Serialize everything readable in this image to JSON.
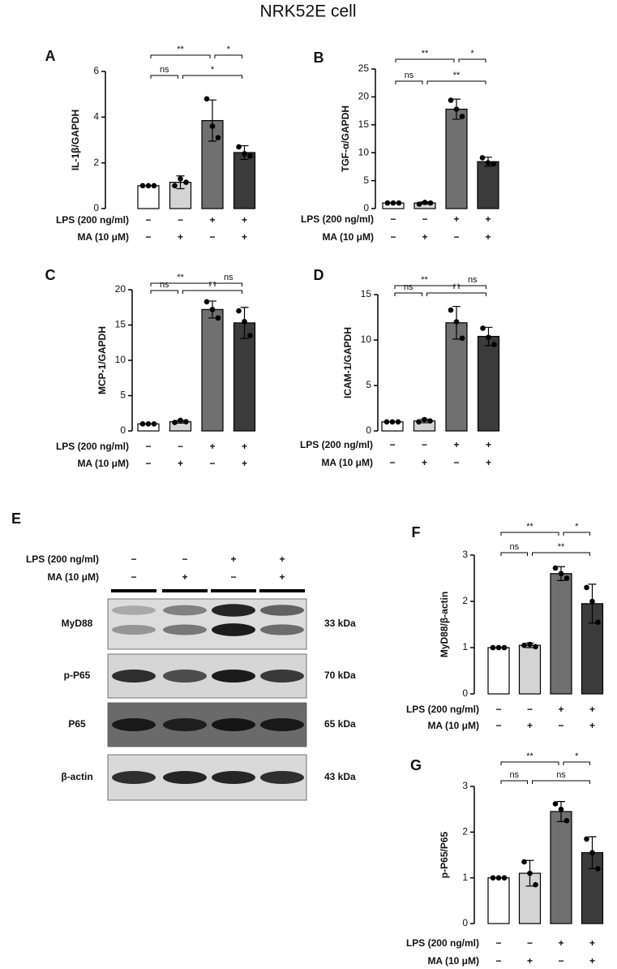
{
  "title": "NRK52E cell",
  "chart_data": [
    {
      "type": "bar",
      "panel": "A",
      "ylabel": "IL-1β/GAPDH",
      "ylim": [
        0,
        6
      ],
      "yticks": [
        0,
        2,
        4,
        6
      ],
      "colors": [
        "#ffffff",
        "#d4d4d4",
        "#707070",
        "#3b3b3b"
      ],
      "values": [
        1.0,
        1.15,
        3.85,
        2.45
      ],
      "errors": [
        0,
        0.28,
        0.9,
        0.3
      ],
      "points": [
        [
          1.0,
          1.0,
          1.0
        ],
        [
          1.0,
          1.3,
          1.15
        ],
        [
          4.8,
          3.6,
          3.1
        ],
        [
          2.7,
          2.4,
          2.3
        ]
      ],
      "comparisons": [
        "**",
        "*",
        "ns",
        "*"
      ],
      "conditions": [
        {
          "name": "LPS (200 ng/ml)",
          "signs": [
            "−",
            "−",
            "+",
            "+"
          ]
        },
        {
          "name": "MA (10 μM)",
          "signs": [
            "−",
            "+",
            "−",
            "+"
          ]
        }
      ]
    },
    {
      "type": "bar",
      "panel": "B",
      "ylabel": "TGF-α/GAPDH",
      "ylim": [
        0,
        25
      ],
      "yticks": [
        0,
        5,
        10,
        15,
        20,
        25
      ],
      "colors": [
        "#ffffff",
        "#d4d4d4",
        "#707070",
        "#3b3b3b"
      ],
      "values": [
        1.0,
        1.0,
        17.8,
        8.4
      ],
      "errors": [
        0,
        0.2,
        1.8,
        0.8
      ],
      "points": [
        [
          1.0,
          1.0,
          1.0
        ],
        [
          0.8,
          1.1,
          1.0
        ],
        [
          19.4,
          17.8,
          16.5
        ],
        [
          9.1,
          8.2,
          8.0
        ]
      ],
      "comparisons": [
        "**",
        "*",
        "ns",
        "**"
      ],
      "conditions": [
        {
          "name": "LPS (200 ng/ml)",
          "signs": [
            "−",
            "−",
            "+",
            "+"
          ]
        },
        {
          "name": "MA (10 μM)",
          "signs": [
            "−",
            "+",
            "−",
            "+"
          ]
        }
      ]
    },
    {
      "type": "bar",
      "panel": "C",
      "ylabel": "MCP-1/GAPDH",
      "ylim": [
        0,
        20
      ],
      "yticks": [
        0,
        5,
        10,
        15,
        20
      ],
      "colors": [
        "#ffffff",
        "#d4d4d4",
        "#707070",
        "#3b3b3b"
      ],
      "values": [
        1.0,
        1.3,
        17.2,
        15.3
      ],
      "errors": [
        0,
        0.2,
        1.2,
        2.2
      ],
      "points": [
        [
          1.0,
          1.0,
          1.0
        ],
        [
          1.2,
          1.5,
          1.3
        ],
        [
          18.3,
          17.2,
          16.0
        ],
        [
          17.0,
          15.5,
          13.5
        ]
      ],
      "comparisons": [
        "**",
        "ns",
        "ns",
        "**"
      ],
      "conditions": [
        {
          "name": "LPS (200 ng/ml)",
          "signs": [
            "−",
            "−",
            "+",
            "+"
          ]
        },
        {
          "name": "MA (10 μM)",
          "signs": [
            "−",
            "+",
            "−",
            "+"
          ]
        }
      ]
    },
    {
      "type": "bar",
      "panel": "D",
      "ylabel": "ICAM-1/GAPDH",
      "ylim": [
        0,
        15
      ],
      "yticks": [
        0,
        5,
        10,
        15
      ],
      "colors": [
        "#ffffff",
        "#d4d4d4",
        "#707070",
        "#3b3b3b"
      ],
      "values": [
        1.0,
        1.1,
        11.9,
        10.4
      ],
      "errors": [
        0,
        0.2,
        1.8,
        1.0
      ],
      "points": [
        [
          1.0,
          1.0,
          1.0
        ],
        [
          1.0,
          1.25,
          1.1
        ],
        [
          13.3,
          12.0,
          10.2
        ],
        [
          11.3,
          10.3,
          9.5
        ]
      ],
      "comparisons": [
        "**",
        "ns",
        "ns",
        "**"
      ],
      "conditions": [
        {
          "name": "LPS (200 ng/ml)",
          "signs": [
            "−",
            "−",
            "+",
            "+"
          ]
        },
        {
          "name": "MA (10 μM)",
          "signs": [
            "−",
            "+",
            "−",
            "+"
          ]
        }
      ]
    },
    {
      "type": "bar",
      "panel": "F",
      "ylabel": "MyD88/β-actin",
      "ylim": [
        0,
        3
      ],
      "yticks": [
        0,
        1,
        2,
        3
      ],
      "colors": [
        "#ffffff",
        "#d4d4d4",
        "#707070",
        "#3b3b3b"
      ],
      "values": [
        1.0,
        1.05,
        2.6,
        1.95
      ],
      "errors": [
        0,
        0.05,
        0.15,
        0.42
      ],
      "points": [
        [
          1.0,
          1.0,
          1.0
        ],
        [
          1.05,
          1.07,
          1.02
        ],
        [
          2.72,
          2.6,
          2.5
        ],
        [
          2.3,
          2.0,
          1.55
        ]
      ],
      "comparisons": [
        "**",
        "*",
        "ns",
        "**"
      ],
      "conditions": [
        {
          "name": "LPS (200 ng/ml)",
          "signs": [
            "−",
            "−",
            "+",
            "+"
          ]
        },
        {
          "name": "MA (10 μM)",
          "signs": [
            "−",
            "+",
            "−",
            "+"
          ]
        }
      ]
    },
    {
      "type": "bar",
      "panel": "G",
      "ylabel": "p-P65/P65",
      "ylim": [
        0,
        3
      ],
      "yticks": [
        0,
        1,
        2,
        3
      ],
      "colors": [
        "#ffffff",
        "#d4d4d4",
        "#707070",
        "#3b3b3b"
      ],
      "values": [
        1.0,
        1.1,
        2.45,
        1.55
      ],
      "errors": [
        0,
        0.28,
        0.22,
        0.35
      ],
      "points": [
        [
          1.0,
          1.0,
          1.0
        ],
        [
          1.35,
          1.1,
          0.85
        ],
        [
          2.62,
          2.5,
          2.25
        ],
        [
          1.85,
          1.55,
          1.2
        ]
      ],
      "comparisons": [
        "**",
        "*",
        "ns",
        "ns"
      ],
      "conditions": [
        {
          "name": "LPS (200 ng/ml)",
          "signs": [
            "−",
            "−",
            "+",
            "+"
          ]
        },
        {
          "name": "MA (10 μM)",
          "signs": [
            "−",
            "+",
            "−",
            "+"
          ]
        }
      ]
    }
  ],
  "blot": {
    "panel": "E",
    "conditions": [
      {
        "name": "LPS (200 ng/ml)",
        "signs": [
          "−",
          "−",
          "+",
          "+"
        ]
      },
      {
        "name": "MA (10 μM)",
        "signs": [
          "−",
          "+",
          "−",
          "+"
        ]
      }
    ],
    "rows": [
      {
        "name": "MyD88",
        "size": "33 kDa"
      },
      {
        "name": "p-P65",
        "size": "70 kDa"
      },
      {
        "name": "P65",
        "size": "65 kDa"
      },
      {
        "name": "β-actin",
        "size": "43 kDa"
      }
    ]
  }
}
